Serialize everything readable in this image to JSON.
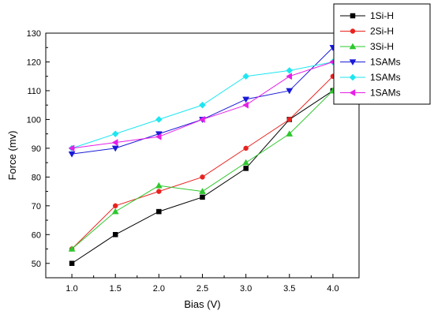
{
  "chart_data": {
    "type": "line",
    "xlabel": "Bias (V)",
    "ylabel": "Force (mv)",
    "xlim": [
      0.7,
      4.3
    ],
    "ylim": [
      45,
      130
    ],
    "x": [
      1.0,
      1.5,
      2.0,
      2.5,
      3.0,
      3.5,
      4.0
    ],
    "x_ticks": [
      "1.0",
      "1.5",
      "2.0",
      "2.5",
      "3.0",
      "3.5",
      "4.0"
    ],
    "y_ticks": [
      50,
      60,
      70,
      80,
      90,
      100,
      110,
      120,
      130
    ],
    "grid": false,
    "legend_position": "top-right",
    "series": [
      {
        "name": "1Si-H",
        "color": "#000000",
        "marker": "square",
        "values": [
          50,
          60,
          68,
          73,
          83,
          100,
          110
        ]
      },
      {
        "name": "2Si-H",
        "color": "#e8231f",
        "marker": "circle",
        "values": [
          55,
          70,
          75,
          80,
          90,
          100,
          115
        ]
      },
      {
        "name": "3Si-H",
        "color": "#2ec82e",
        "marker": "triangle-up",
        "values": [
          55,
          68,
          77,
          75,
          85,
          95,
          110
        ]
      },
      {
        "name": "1SAMs",
        "color": "#1a1ad8",
        "marker": "triangle-down",
        "values": [
          88,
          90,
          95,
          100,
          107,
          110,
          125
        ]
      },
      {
        "name": "1SAMs",
        "color": "#1ee6f0",
        "marker": "diamond",
        "values": [
          90,
          95,
          100,
          105,
          115,
          117,
          120
        ]
      },
      {
        "name": "1SAMs",
        "color": "#e61ee6",
        "marker": "triangle-left",
        "values": [
          90,
          92,
          94,
          100,
          105,
          115,
          120
        ]
      }
    ]
  }
}
